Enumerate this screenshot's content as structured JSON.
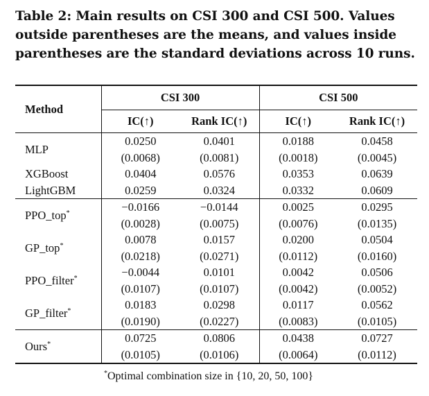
{
  "caption": "Table 2: Main results on CSI 300 and CSI 500. Values outside parentheses are the means, and values inside parentheses are the standard deviations across 10 runs.",
  "header": {
    "method": "Method",
    "group1": "CSI 300",
    "group2": "CSI 500",
    "ic": "IC(↑)",
    "rank_ic": "Rank IC(↑)"
  },
  "rows": [
    {
      "method": "MLP",
      "star": "",
      "mean": [
        "0.0250",
        "0.0401",
        "0.0188",
        "0.0458"
      ],
      "std": [
        "(0.0068)",
        "(0.0081)",
        "(0.0018)",
        "(0.0045)"
      ]
    },
    {
      "method": "XGBoost",
      "star": "",
      "mean": [
        "0.0404",
        "0.0576",
        "0.0353",
        "0.0639"
      ]
    },
    {
      "method": "LightGBM",
      "star": "",
      "mean": [
        "0.0259",
        "0.0324",
        "0.0332",
        "0.0609"
      ]
    },
    {
      "method": "PPO_top",
      "star": "*",
      "mean": [
        "−0.0166",
        "−0.0144",
        "0.0025",
        "0.0295"
      ],
      "std": [
        "(0.0028)",
        "(0.0075)",
        "(0.0076)",
        "(0.0135)"
      ]
    },
    {
      "method": "GP_top",
      "star": "*",
      "mean": [
        "0.0078",
        "0.0157",
        "0.0200",
        "0.0504"
      ],
      "std": [
        "(0.0218)",
        "(0.0271)",
        "(0.0112)",
        "(0.0160)"
      ]
    },
    {
      "method": "PPO_filter",
      "star": "*",
      "mean": [
        "−0.0044",
        "0.0101",
        "0.0042",
        "0.0506"
      ],
      "std": [
        "(0.0107)",
        "(0.0107)",
        "(0.0042)",
        "(0.0052)"
      ]
    },
    {
      "method": "GP_filter",
      "star": "*",
      "mean": [
        "0.0183",
        "0.0298",
        "0.0117",
        "0.0562"
      ],
      "std": [
        "(0.0190)",
        "(0.0227)",
        "(0.0083)",
        "(0.0105)"
      ]
    },
    {
      "method": "Ours",
      "star": "*",
      "mean": [
        "0.0725",
        "0.0806",
        "0.0438",
        "0.0727"
      ],
      "std": [
        "(0.0105)",
        "(0.0106)",
        "(0.0064)",
        "(0.0112)"
      ]
    }
  ],
  "footnote": "Optimal combination size in {10, 20, 50, 100}",
  "footnote_star": "*"
}
